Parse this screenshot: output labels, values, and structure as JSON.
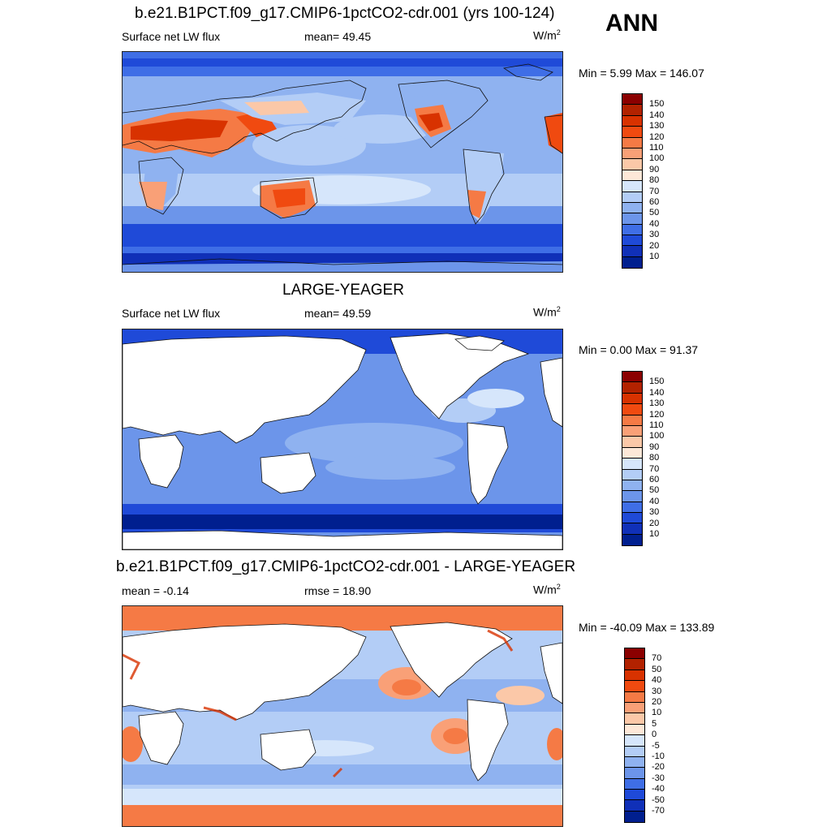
{
  "season": "ANN",
  "panels": [
    {
      "title": "b.e21.B1PCT.f09_g17.CMIP6-1pctCO2-cdr.001 (yrs 100-124)",
      "left_label": "Surface net LW flux",
      "center_label": "mean=  49.45",
      "unit": "W/m",
      "unit_sup": "2",
      "minmax": "Min =   5.99 Max = 146.07",
      "colorbar_ticks": [
        "150",
        "140",
        "130",
        "120",
        "110",
        "100",
        "90",
        "80",
        "70",
        "60",
        "50",
        "40",
        "30",
        "20",
        "10"
      ],
      "colorbar_colors": [
        "#8b0000",
        "#b22200",
        "#d83200",
        "#f04a10",
        "#f57a45",
        "#f9a077",
        "#fbc8a8",
        "#fde8d8",
        "#d6e6fb",
        "#b3cdf6",
        "#8fb2f0",
        "#6c95ea",
        "#3f6ee6",
        "#1f4ad8",
        "#1030b8",
        "#001f8f"
      ]
    },
    {
      "title": "LARGE-YEAGER",
      "left_label": "Surface net LW flux",
      "center_label": "mean=  49.59",
      "unit": "W/m",
      "unit_sup": "2",
      "minmax": "Min =   0.00 Max =  91.37",
      "colorbar_ticks": [
        "150",
        "140",
        "130",
        "120",
        "110",
        "100",
        "90",
        "80",
        "70",
        "60",
        "50",
        "40",
        "30",
        "20",
        "10"
      ],
      "colorbar_colors": [
        "#8b0000",
        "#b22200",
        "#d83200",
        "#f04a10",
        "#f57a45",
        "#f9a077",
        "#fbc8a8",
        "#fde8d8",
        "#d6e6fb",
        "#b3cdf6",
        "#8fb2f0",
        "#6c95ea",
        "#3f6ee6",
        "#1f4ad8",
        "#1030b8",
        "#001f8f"
      ]
    },
    {
      "title": "b.e21.B1PCT.f09_g17.CMIP6-1pctCO2-cdr.001 - LARGE-YEAGER",
      "left_label": "mean =  -0.14",
      "center_label": "rmse =  18.90",
      "unit": "W/m",
      "unit_sup": "2",
      "minmax": "Min = -40.09 Max = 133.89",
      "colorbar_ticks": [
        "70",
        "50",
        "40",
        "30",
        "20",
        "10",
        "5",
        "0",
        "-5",
        "-10",
        "-20",
        "-30",
        "-40",
        "-50",
        "-70"
      ],
      "colorbar_colors": [
        "#8b0000",
        "#b22200",
        "#d83200",
        "#f04a10",
        "#f57a45",
        "#f9a077",
        "#fbc8a8",
        "#fde8d8",
        "#d6e6fb",
        "#b3cdf6",
        "#8fb2f0",
        "#6c95ea",
        "#3f6ee6",
        "#1f4ad8",
        "#1030b8",
        "#001f8f"
      ]
    }
  ]
}
